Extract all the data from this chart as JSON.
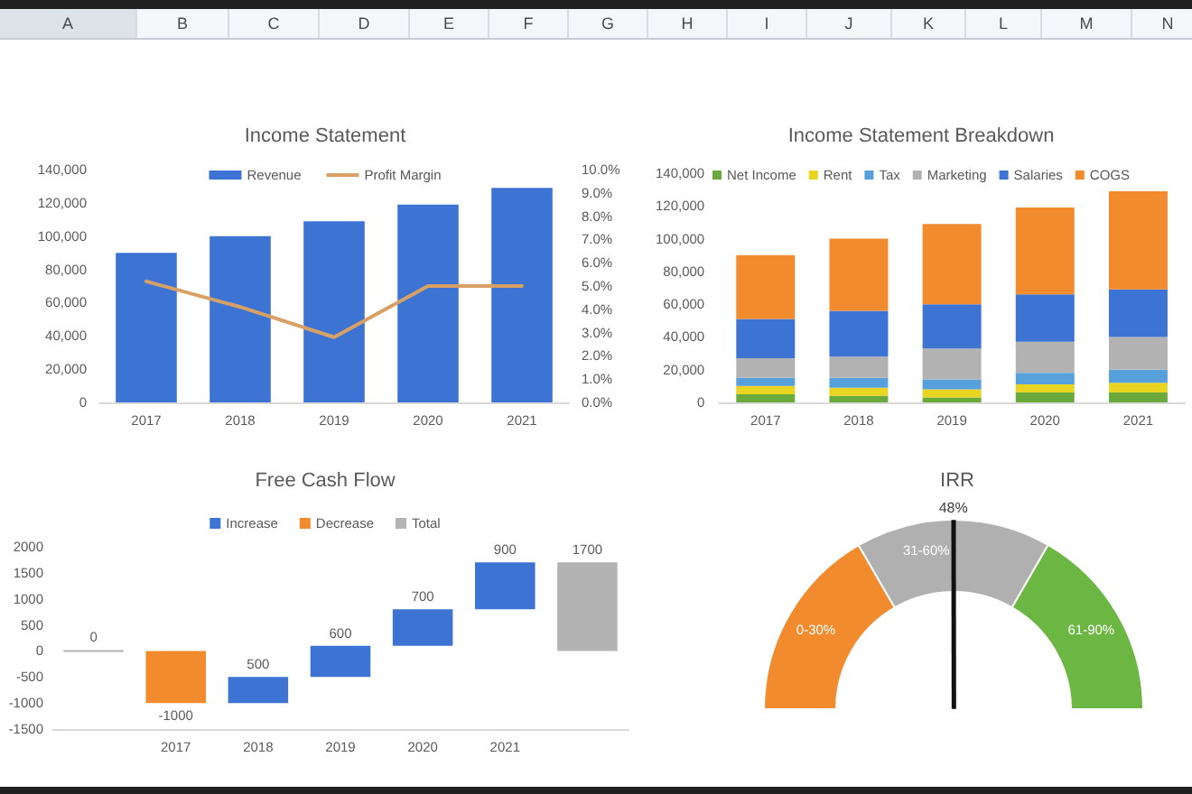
{
  "chart_data": [
    {
      "type": "other",
      "annotations": [
        "A",
        "B",
        "C",
        "D",
        "E",
        "F",
        "G",
        "H",
        "I",
        "J",
        "K",
        "L",
        "M",
        "N"
      ]
    },
    {
      "type": "bar",
      "title": "Income Statement",
      "categories": [
        "2017",
        "2018",
        "2019",
        "2020",
        "2021"
      ],
      "series": [
        {
          "name": "Revenue",
          "color": "#3d74d4",
          "values": [
            90000,
            100000,
            109000,
            119000,
            129000
          ]
        },
        {
          "name": "Profit Margin",
          "type": "line",
          "axis": "y2",
          "color": "#d9a066",
          "values": [
            5.2,
            4.1,
            2.8,
            5.0,
            5.0
          ]
        }
      ],
      "ylim": [
        0,
        140000
      ],
      "yticks": [
        {
          "value": 0,
          "label": "0"
        },
        {
          "value": 20000,
          "label": "20,000"
        },
        {
          "value": 40000,
          "label": "40,000"
        },
        {
          "value": 60000,
          "label": "60,000"
        },
        {
          "value": 80000,
          "label": "80,000"
        },
        {
          "value": 100000,
          "label": "100,000"
        },
        {
          "value": 120000,
          "label": "120,000"
        },
        {
          "value": 140000,
          "label": "140,000"
        }
      ],
      "y2lim": [
        0,
        10
      ],
      "y2ticks": [
        {
          "value": 0,
          "label": "0.0%"
        },
        {
          "value": 1,
          "label": "1.0%"
        },
        {
          "value": 2,
          "label": "2.0%"
        },
        {
          "value": 3,
          "label": "3.0%"
        },
        {
          "value": 4,
          "label": "4.0%"
        },
        {
          "value": 5,
          "label": "5.0%"
        },
        {
          "value": 6,
          "label": "6.0%"
        },
        {
          "value": 7,
          "label": "7.0%"
        },
        {
          "value": 8,
          "label": "8.0%"
        },
        {
          "value": 9,
          "label": "9.0%"
        },
        {
          "value": 10,
          "label": "10.0%"
        }
      ],
      "legend": "top",
      "grid": false,
      "marker": "none"
    },
    {
      "type": "bar",
      "title": "Income Statement Breakdown",
      "categories": [
        "2017",
        "2018",
        "2019",
        "2020",
        "2021"
      ],
      "stacked": true,
      "series": [
        {
          "name": "Net Income",
          "color": "#6aaa3c",
          "values": [
            5000,
            4000,
            3000,
            6000,
            6000
          ]
        },
        {
          "name": "Rent",
          "color": "#e9d422",
          "values": [
            5000,
            5000,
            5000,
            5000,
            6000
          ]
        },
        {
          "name": "Tax",
          "color": "#56a0dc",
          "values": [
            5000,
            6000,
            6000,
            7000,
            8000
          ]
        },
        {
          "name": "Marketing",
          "color": "#b2b2b2",
          "values": [
            12000,
            13000,
            19000,
            19000,
            20000
          ]
        },
        {
          "name": "Salaries",
          "color": "#3d74d4",
          "values": [
            24000,
            28000,
            27000,
            29000,
            29000
          ]
        },
        {
          "name": "COGS",
          "color": "#f28a2e",
          "values": [
            39000,
            44000,
            49000,
            53000,
            60000
          ]
        }
      ],
      "ylim": [
        0,
        140000
      ],
      "yticks": [
        {
          "value": 0,
          "label": "0"
        },
        {
          "value": 20000,
          "label": "20,000"
        },
        {
          "value": 40000,
          "label": "40,000"
        },
        {
          "value": 60000,
          "label": "60,000"
        },
        {
          "value": 80000,
          "label": "80,000"
        },
        {
          "value": 100000,
          "label": "100,000"
        },
        {
          "value": 120000,
          "label": "120,000"
        },
        {
          "value": 140000,
          "label": "140,000"
        }
      ],
      "legend": "top",
      "grid": false
    },
    {
      "type": "bar",
      "title": "Free Cash Flow",
      "categories": [
        null,
        "2017",
        "2018",
        "2019",
        "2020",
        "2021",
        null
      ],
      "series": [
        {
          "name": "Increase",
          "color": "#3d74d4",
          "values": [
            null,
            null,
            500,
            600,
            700,
            900,
            null
          ],
          "base": [
            null,
            null,
            -1000,
            -500,
            100,
            800,
            null
          ]
        },
        {
          "name": "Decrease",
          "color": "#f28a2e",
          "values": [
            null,
            -1000,
            null,
            null,
            null,
            null,
            null
          ]
        },
        {
          "name": "Total",
          "color": "#b3b3b3",
          "values": [
            0,
            null,
            null,
            null,
            null,
            null,
            1700
          ]
        }
      ],
      "ylim": [
        -1500,
        2000
      ],
      "yticks": [
        -1500,
        -1000,
        -500,
        0,
        500,
        1000,
        1500,
        2000
      ],
      "data_labels": true,
      "legend": "top",
      "grid": false
    },
    {
      "type": "donut",
      "title": "IRR",
      "categories": [
        "0-30%",
        "31-60%",
        "61-90%"
      ],
      "values": [
        33.3,
        33.3,
        33.4
      ],
      "colors": [
        "#f28a2e",
        "#b0b0b0",
        "#6cb744"
      ],
      "needle": "31-60%",
      "annotations": [
        "48%"
      ]
    }
  ]
}
